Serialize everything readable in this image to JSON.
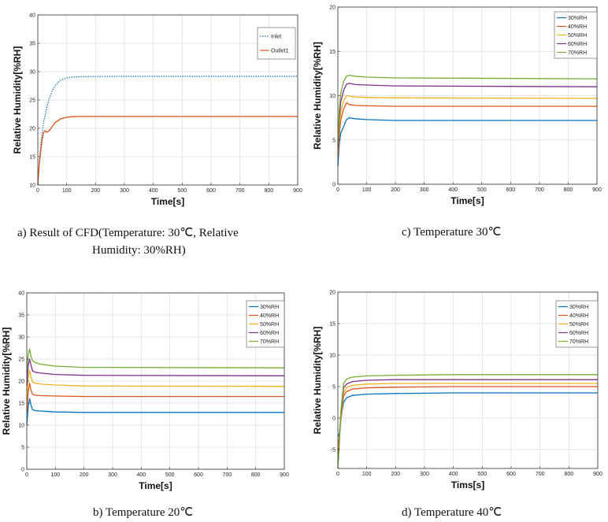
{
  "chart_data": [
    {
      "type": "line",
      "id": "a",
      "xlabel": "Time[s]",
      "ylabel": "Relative Humidity[%RH]",
      "xlim": [
        0,
        900
      ],
      "ylim": [
        10,
        40
      ],
      "xticks": [
        0,
        100,
        200,
        300,
        400,
        500,
        600,
        700,
        800,
        900
      ],
      "yticks": [
        10,
        15,
        20,
        25,
        30,
        35,
        40
      ],
      "grid": true,
      "legend_position": "top-right",
      "series": [
        {
          "name": "Inlet",
          "color": "#2878b8",
          "style": "dotted",
          "x": [
            0,
            5,
            10,
            20,
            30,
            40,
            50,
            60,
            70,
            80,
            100,
            120,
            150,
            200,
            300,
            900
          ],
          "y": [
            10,
            14,
            17,
            21,
            23.5,
            25.3,
            26.6,
            27.5,
            28.1,
            28.5,
            28.9,
            29.05,
            29.1,
            29.15,
            29.2,
            29.2
          ]
        },
        {
          "name": "Outlet1",
          "color": "#d95319",
          "style": "solid",
          "x": [
            0,
            5,
            10,
            15,
            20,
            25,
            30,
            40,
            50,
            60,
            80,
            100,
            120,
            150,
            200,
            900
          ],
          "y": [
            10,
            13.5,
            16,
            18,
            19.2,
            19.6,
            19.3,
            19.6,
            20.3,
            21,
            21.7,
            21.95,
            22.05,
            22.1,
            22.1,
            22.1
          ]
        }
      ]
    },
    {
      "type": "line",
      "id": "c",
      "xlabel": "Time[s]",
      "ylabel": "Relative Humidity[%RH]",
      "xlim": [
        0,
        900
      ],
      "ylim": [
        0,
        20
      ],
      "xticks": [
        0,
        100,
        200,
        300,
        400,
        500,
        600,
        700,
        800,
        900
      ],
      "yticks": [
        0,
        5,
        10,
        15,
        20
      ],
      "grid": true,
      "legend_position": "top-right",
      "series": [
        {
          "name": "30%RH",
          "color": "#0072bd",
          "x": [
            0,
            5,
            10,
            20,
            30,
            40,
            60,
            100,
            200,
            900
          ],
          "y": [
            2,
            4.5,
            5.8,
            6.5,
            7.3,
            7.5,
            7.4,
            7.3,
            7.2,
            7.2
          ]
        },
        {
          "name": "40%RH",
          "color": "#d95319",
          "x": [
            0,
            5,
            10,
            20,
            30,
            40,
            60,
            100,
            200,
            900
          ],
          "y": [
            3,
            5.5,
            7.3,
            8.5,
            9.2,
            9.0,
            8.9,
            8.85,
            8.8,
            8.8
          ]
        },
        {
          "name": "50%RH",
          "color": "#edb120",
          "x": [
            0,
            5,
            10,
            20,
            30,
            40,
            60,
            100,
            200,
            900
          ],
          "y": [
            3.5,
            6.5,
            8.2,
            9.4,
            10.0,
            9.95,
            9.85,
            9.8,
            9.75,
            9.7
          ]
        },
        {
          "name": "60%RH",
          "color": "#7e2f8e",
          "x": [
            0,
            5,
            10,
            20,
            30,
            40,
            60,
            100,
            200,
            900
          ],
          "y": [
            4,
            7.5,
            9.3,
            10.6,
            11.3,
            11.4,
            11.25,
            11.2,
            11.1,
            11.0
          ]
        },
        {
          "name": "70%RH",
          "color": "#77ac30",
          "x": [
            0,
            5,
            10,
            20,
            30,
            40,
            60,
            100,
            200,
            900
          ],
          "y": [
            4.5,
            8.5,
            10.3,
            11.6,
            12.2,
            12.3,
            12.2,
            12.1,
            12.0,
            11.9
          ]
        }
      ]
    },
    {
      "type": "line",
      "id": "b",
      "xlabel": "Time[s]",
      "ylabel": "Relative Humidity[%RH]",
      "xlim": [
        0,
        900
      ],
      "ylim": [
        0,
        40
      ],
      "xticks": [
        0,
        100,
        200,
        300,
        400,
        500,
        600,
        700,
        800,
        900
      ],
      "yticks": [
        0,
        5,
        10,
        15,
        20,
        25,
        30,
        35,
        40
      ],
      "grid": true,
      "legend_position": "top-right",
      "series": [
        {
          "name": "30%RH",
          "color": "#0072bd",
          "x": [
            0,
            5,
            10,
            15,
            20,
            30,
            50,
            100,
            200,
            900
          ],
          "y": [
            10,
            14,
            16,
            14.5,
            13.5,
            13.3,
            13.2,
            13.0,
            12.9,
            12.9
          ]
        },
        {
          "name": "40%RH",
          "color": "#d95319",
          "x": [
            0,
            5,
            10,
            15,
            20,
            30,
            50,
            100,
            200,
            900
          ],
          "y": [
            13,
            17.5,
            19.5,
            17.8,
            17.0,
            16.8,
            16.7,
            16.6,
            16.5,
            16.5
          ]
        },
        {
          "name": "50%RH",
          "color": "#edb120",
          "x": [
            0,
            5,
            10,
            15,
            20,
            30,
            50,
            100,
            200,
            900
          ],
          "y": [
            16,
            20.5,
            22.5,
            20.8,
            19.8,
            19.5,
            19.3,
            19.1,
            18.9,
            18.8
          ]
        },
        {
          "name": "60%RH",
          "color": "#7e2f8e",
          "x": [
            0,
            5,
            10,
            15,
            20,
            30,
            50,
            100,
            200,
            900
          ],
          "y": [
            19,
            23.5,
            25,
            23.5,
            22.3,
            22.0,
            21.8,
            21.5,
            21.3,
            21.2
          ]
        },
        {
          "name": "70%RH",
          "color": "#77ac30",
          "x": [
            0,
            5,
            10,
            15,
            20,
            30,
            50,
            100,
            200,
            900
          ],
          "y": [
            22,
            26,
            27.3,
            25.5,
            24.6,
            24.2,
            23.8,
            23.4,
            23.1,
            23.0
          ]
        }
      ]
    },
    {
      "type": "line",
      "id": "d",
      "xlabel": "Tims[s]",
      "ylabel": "Relative Humidity[%RH]",
      "xlim": [
        0,
        900
      ],
      "ylim": [
        -8,
        20
      ],
      "xticks": [
        0,
        100,
        200,
        300,
        400,
        500,
        600,
        700,
        800,
        900
      ],
      "yticks": [
        -5,
        0,
        5,
        10,
        15,
        20
      ],
      "grid": true,
      "legend_position": "top-right",
      "series": [
        {
          "name": "30%RH",
          "color": "#0072bd",
          "x": [
            0,
            5,
            10,
            20,
            30,
            50,
            100,
            200,
            400,
            900
          ],
          "y": [
            -3,
            -2.5,
            0,
            2.5,
            3.2,
            3.6,
            3.8,
            3.9,
            4.0,
            4.0
          ]
        },
        {
          "name": "40%RH",
          "color": "#d95319",
          "x": [
            0,
            5,
            10,
            20,
            30,
            50,
            100,
            200,
            400,
            900
          ],
          "y": [
            -5,
            -3,
            -0.5,
            3.5,
            4.2,
            4.6,
            4.8,
            4.9,
            5.0,
            5.0
          ]
        },
        {
          "name": "50%RH",
          "color": "#edb120",
          "x": [
            0,
            5,
            10,
            20,
            30,
            50,
            100,
            200,
            400,
            900
          ],
          "y": [
            -6,
            -3.5,
            0,
            4.0,
            4.8,
            5.2,
            5.4,
            5.5,
            5.5,
            5.5
          ]
        },
        {
          "name": "60%RH",
          "color": "#7e2f8e",
          "x": [
            0,
            5,
            10,
            20,
            30,
            50,
            100,
            200,
            400,
            900
          ],
          "y": [
            -7,
            -4,
            0.5,
            4.8,
            5.4,
            5.8,
            6.0,
            6.1,
            6.1,
            6.1
          ]
        },
        {
          "name": "70%RH",
          "color": "#77ac30",
          "x": [
            0,
            5,
            10,
            20,
            30,
            50,
            100,
            200,
            400,
            900
          ],
          "y": [
            -8,
            -4.5,
            1,
            5.5,
            6.2,
            6.5,
            6.7,
            6.8,
            6.9,
            6.9
          ]
        }
      ]
    }
  ],
  "captions": {
    "a_line1": "a)  Result  of  CFD(Temperature:  30℃,  Relative",
    "a_line2": "Humidity:  30%RH)",
    "c": "c)  Temperature  30℃",
    "b": "b)  Temperature  20℃",
    "d": "d)  Temperature  40℃"
  }
}
